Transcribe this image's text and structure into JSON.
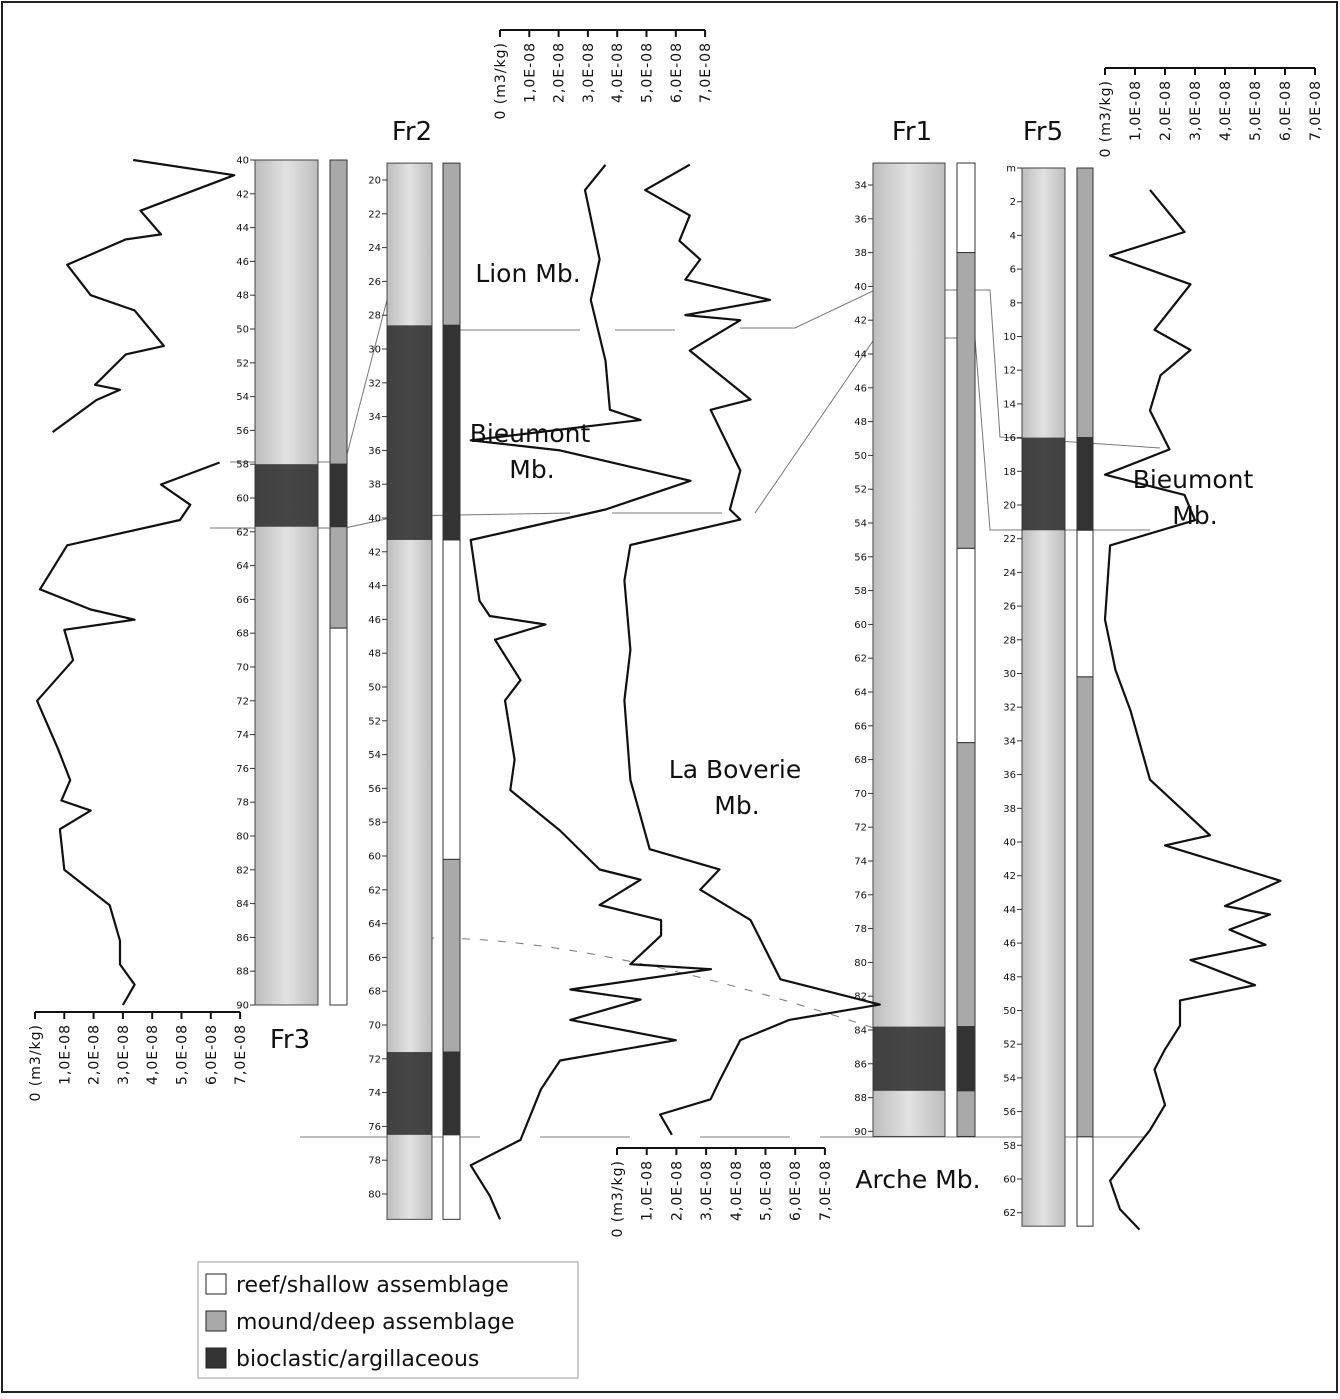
{
  "figure": {
    "wells": [
      {
        "name": "Fr3",
        "depth_ticks": [
          40,
          42,
          44,
          46,
          48,
          50,
          52,
          54,
          56,
          58,
          60,
          62,
          64,
          66,
          68,
          70,
          72,
          74,
          76,
          78,
          80,
          82,
          84,
          86,
          88,
          90
        ],
        "assemblage": [
          {
            "top": 40,
            "base": 58,
            "color": "#a9a9a9"
          },
          {
            "top": 58,
            "base": 61.7,
            "color": "#333333"
          },
          {
            "top": 61.7,
            "base": 67.7,
            "color": "#a9a9a9"
          },
          {
            "top": 67.7,
            "base": 90,
            "color": "#ffffff"
          }
        ],
        "curve_depth": [
          40,
          40.9,
          43,
          44.4,
          44.7,
          46.2,
          48,
          48.9,
          51,
          51.5,
          53.3,
          53.6,
          54.2,
          56.1,
          57,
          57.9,
          59.2,
          60.4,
          61.3,
          62.8,
          65.4,
          66.6,
          67.2,
          67.8,
          69.6,
          72,
          74.9,
          76.7,
          77.9,
          78.5,
          79.6,
          82,
          84.1,
          86.2,
          87.6,
          88.8,
          90
        ],
        "curve_values": [
          3.35e-08,
          6.8e-08,
          3.6e-08,
          4.3e-08,
          3.1e-08,
          1.1e-08,
          1.9e-08,
          3.4e-08,
          4.4e-08,
          3.1e-08,
          2.05e-08,
          2.9e-08,
          2.1e-08,
          6e-09,
          null,
          6.3e-08,
          4.3e-08,
          5.3e-08,
          4.95e-08,
          1.1e-08,
          1.7e-09,
          1.9e-08,
          3.4e-08,
          1e-08,
          1.3e-08,
          7e-10,
          8e-09,
          1.2e-08,
          9e-09,
          1.9e-08,
          8.5e-09,
          1e-08,
          2.55e-08,
          2.9e-08,
          2.9e-08,
          3.4e-08,
          3e-08
        ],
        "axis_ticks": [
          {
            "value": 0,
            "label": "0 (m3/kg)"
          },
          {
            "value": 1e-08,
            "label": "1,0E-08"
          },
          {
            "value": 2e-08,
            "label": "2,0E-08"
          },
          {
            "value": 3e-08,
            "label": "3,0E-08"
          },
          {
            "value": 4e-08,
            "label": "4,0E-08"
          },
          {
            "value": 5e-08,
            "label": "5,0E-08"
          },
          {
            "value": 6e-08,
            "label": "6,0E-08"
          },
          {
            "value": 7e-08,
            "label": "7,0E-08"
          }
        ]
      },
      {
        "name": "Fr2",
        "depth_ticks": [
          20,
          22,
          24,
          26,
          28,
          30,
          32,
          34,
          36,
          38,
          40,
          42,
          44,
          46,
          48,
          50,
          52,
          54,
          56,
          58,
          60,
          62,
          64,
          66,
          68,
          70,
          72,
          74,
          76,
          78,
          80
        ],
        "assemblage": [
          {
            "top": 19,
            "base": 28.6,
            "color": "#a9a9a9"
          },
          {
            "top": 28.6,
            "base": 41.3,
            "color": "#333333"
          },
          {
            "top": 41.3,
            "base": 60.2,
            "color": "#ffffff"
          },
          {
            "top": 60.2,
            "base": 71.6,
            "color": "#a9a9a9"
          },
          {
            "top": 71.6,
            "base": 76.5,
            "color": "#333333"
          },
          {
            "top": 76.5,
            "base": 81.5,
            "color": "#ffffff"
          }
        ],
        "curve_depth": [
          19.1,
          20.6,
          24.7,
          27.1,
          30.7,
          33.6,
          34.2,
          35.4,
          36,
          37.8,
          39.5,
          41.3,
          44.9,
          45.8,
          46.3,
          47.2,
          49.6,
          50.8,
          54.3,
          56.1,
          58.5,
          60.8,
          61.4,
          62.9,
          63.8,
          64.7,
          66.4,
          66.7,
          67.9,
          68.5,
          69.7,
          70.9,
          72.1,
          73.8,
          76.8,
          78.3,
          80.1,
          81.5
        ],
        "curve_values": [
          3.6e-08,
          2.9e-08,
          3.4e-08,
          3.1e-08,
          3.6e-08,
          3.75e-08,
          4.8e-08,
          -1e-08,
          2.05e-08,
          6.5e-08,
          3.6e-08,
          -1e-08,
          -7e-09,
          -3.5e-09,
          1.55e-08,
          -1.7e-09,
          7e-09,
          1.7e-09,
          5e-09,
          3.5e-09,
          2.05e-08,
          3.4e-08,
          4.8e-08,
          3.4e-08,
          5.5e-08,
          5.5e-08,
          4.45e-08,
          7.2e-08,
          2.4e-08,
          4.8e-08,
          2.4e-08,
          6e-08,
          2.05e-08,
          1.4e-08,
          7e-09,
          -1e-08,
          -3.5e-09,
          0
        ],
        "axis_ticks": [
          {
            "value": 0,
            "label": "0 (m3/kg)"
          },
          {
            "value": 1e-08,
            "label": "1,0E-08"
          },
          {
            "value": 2e-08,
            "label": "2,0E-08"
          },
          {
            "value": 3e-08,
            "label": "3,0E-08"
          },
          {
            "value": 4e-08,
            "label": "4,0E-08"
          },
          {
            "value": 5e-08,
            "label": "5,0E-08"
          },
          {
            "value": 6e-08,
            "label": "6,0E-08"
          },
          {
            "value": 7e-08,
            "label": "7,0E-08"
          }
        ]
      },
      {
        "name": "Fr1",
        "depth_ticks": [
          34,
          36,
          38,
          40,
          42,
          44,
          46,
          48,
          50,
          52,
          54,
          56,
          58,
          60,
          62,
          64,
          66,
          68,
          70,
          72,
          74,
          76,
          78,
          80,
          82,
          84,
          86,
          88,
          90
        ],
        "assemblage": [
          {
            "top": 32.7,
            "base": 38,
            "color": "#ffffff"
          },
          {
            "top": 38,
            "base": 55.5,
            "color": "#a9a9a9"
          },
          {
            "top": 55.5,
            "base": 67,
            "color": "#ffffff"
          },
          {
            "top": 67,
            "base": 83.8,
            "color": "#a9a9a9"
          },
          {
            "top": 83.8,
            "base": 87.6,
            "color": "#333333"
          },
          {
            "top": 87.6,
            "base": 90.3,
            "color": "#a9a9a9"
          }
        ],
        "curve_depth": [
          32.8,
          34.3,
          35.8,
          37.3,
          38.4,
          39.6,
          40.8,
          41.7,
          42,
          43.8,
          46.7,
          47.3,
          50.9,
          53.2,
          53.8,
          55.3,
          57.4,
          61.5,
          64.5,
          69.2,
          73.3,
          74.5,
          75.7,
          77.5,
          81,
          82.5,
          83.4,
          84.6,
          87,
          88.1,
          89,
          90.2
        ],
        "curve_values": [
          2.45e-08,
          9.5e-09,
          2.45e-08,
          2.1e-08,
          2.8e-08,
          2.3e-08,
          5.15e-08,
          2.3e-08,
          4.15e-08,
          2.45e-08,
          4.5e-08,
          3.15e-08,
          4.15e-08,
          3.8e-08,
          4.15e-08,
          4.5e-09,
          2.5e-09,
          4.5e-09,
          2.5e-09,
          4.5e-09,
          1.1e-08,
          3.45e-08,
          2.8e-08,
          4.5e-08,
          5.5e-08,
          8.85e-08,
          5.8e-08,
          4.15e-08,
          3.45e-08,
          3.15e-08,
          1.45e-08,
          1.85e-08
        ],
        "axis_ticks": [
          {
            "value": 0,
            "label": "0 (m3/kg)"
          },
          {
            "value": 1e-08,
            "label": "1,0E-08"
          },
          {
            "value": 2e-08,
            "label": "2,0E-08"
          },
          {
            "value": 3e-08,
            "label": "3,0E-08"
          },
          {
            "value": 4e-08,
            "label": "4,0E-08"
          },
          {
            "value": 5e-08,
            "label": "5,0E-08"
          },
          {
            "value": 6e-08,
            "label": "6,0E-08"
          },
          {
            "value": 7e-08,
            "label": "7,0E-08"
          }
        ]
      },
      {
        "name": "Fr5",
        "depth_ticks": [
          {
            "value": 0,
            "label": "m"
          },
          2,
          4,
          6,
          8,
          10,
          12,
          14,
          16,
          18,
          20,
          22,
          24,
          26,
          28,
          30,
          32,
          34,
          36,
          38,
          40,
          42,
          44,
          46,
          48,
          50,
          52,
          54,
          56,
          58,
          60,
          62
        ],
        "assemblage": [
          {
            "top": 0,
            "base": 16,
            "color": "#a9a9a9"
          },
          {
            "top": 16,
            "base": 21.5,
            "color": "#333333"
          },
          {
            "top": 21.5,
            "base": 30.2,
            "color": "#ffffff"
          },
          {
            "top": 30.2,
            "base": 57.5,
            "color": "#a9a9a9"
          },
          {
            "top": 57.5,
            "base": 62.8,
            "color": "#ffffff"
          }
        ],
        "curve_depth": [
          1.3,
          3.8,
          5.2,
          6.9,
          9.6,
          10.8,
          12.3,
          14.4,
          16.7,
          18.2,
          19.4,
          20.9,
          22.4,
          26.8,
          29.8,
          32.2,
          36.3,
          39.6,
          40.2,
          42.3,
          43.8,
          44.3,
          45.2,
          46.1,
          47,
          48.5,
          49.4,
          50.9,
          52.3,
          53.5,
          55.6,
          57.1,
          60.1,
          61.8,
          63
        ],
        "curve_values": [
          1.5e-08,
          2.65e-08,
          1.7e-09,
          2.85e-08,
          1.65e-08,
          2.85e-08,
          1.85e-08,
          1.5e-08,
          2.15e-08,
          0,
          2.65e-08,
          3e-08,
          1.7e-09,
          0,
          3.5e-09,
          8.5e-09,
          1.5e-08,
          3.5e-08,
          2e-08,
          5.85e-08,
          4e-08,
          5.5e-08,
          4.15e-08,
          5.35e-08,
          2.85e-08,
          5e-08,
          2.5e-08,
          2.5e-08,
          2e-08,
          1.65e-08,
          2e-08,
          1.5e-08,
          1.7e-09,
          5e-09,
          1.15e-08
        ],
        "axis_ticks": [
          {
            "value": 0,
            "label": "0 (m3/kg)"
          },
          {
            "value": 1e-08,
            "label": "1,0E-08"
          },
          {
            "value": 2e-08,
            "label": "2,0E-08"
          },
          {
            "value": 3e-08,
            "label": "3,0E-08"
          },
          {
            "value": 4e-08,
            "label": "4,0E-08"
          },
          {
            "value": 5e-08,
            "label": "5,0E-08"
          },
          {
            "value": 6e-08,
            "label": "6,0E-08"
          },
          {
            "value": 7e-08,
            "label": "7,0E-08"
          }
        ]
      }
    ],
    "members": [
      [
        "Lion Mb."
      ],
      [
        "Bieumont",
        "Mb."
      ],
      [
        "La Boverie",
        "Mb."
      ],
      [
        "Bieumont",
        "Mb."
      ],
      [
        "Arche Mb."
      ]
    ],
    "legend": [
      {
        "label": "reef/shallow assemblage",
        "color": "#ffffff"
      },
      {
        "label": "mound/deep assemblage",
        "color": "#a9a9a9"
      },
      {
        "label": "bioclastic/argillaceous",
        "color": "#333333"
      }
    ]
  }
}
